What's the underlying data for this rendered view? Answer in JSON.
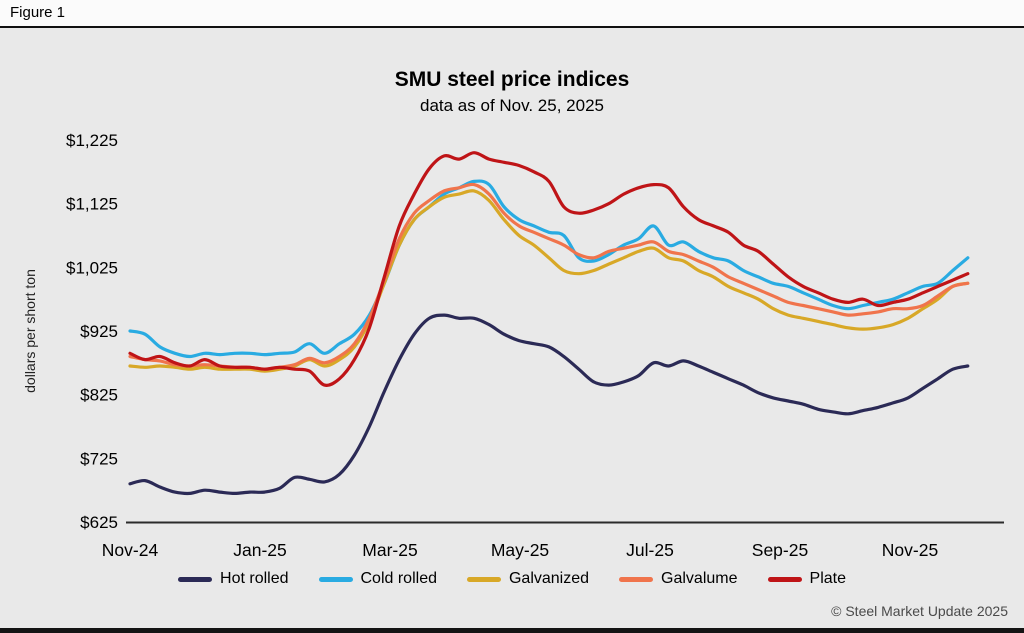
{
  "figure_label": "Figure 1",
  "footer": "© Steel Market Update 2025",
  "chart_data": {
    "type": "line",
    "title": "SMU steel price indices",
    "subtitle": "data as of Nov. 25, 2025",
    "ylabel": "dollars per short ton",
    "ylim": [
      625,
      1225
    ],
    "grid": false,
    "legend_position": "bottom",
    "x_unit": "weeks since Nov-24",
    "x_range": [
      0,
      56
    ],
    "yticks": [
      {
        "value": 1225,
        "label": "$1,225"
      },
      {
        "value": 1125,
        "label": "$1,125"
      },
      {
        "value": 1025,
        "label": "$1,025"
      },
      {
        "value": 925,
        "label": "$925"
      },
      {
        "value": 825,
        "label": "$825"
      },
      {
        "value": 725,
        "label": "$725"
      },
      {
        "value": 625,
        "label": "$625"
      }
    ],
    "xticks": [
      {
        "week": 0,
        "label": "Nov-24"
      },
      {
        "week": 8.69,
        "label": "Jan-25"
      },
      {
        "week": 17.38,
        "label": "Mar-25"
      },
      {
        "week": 26.07,
        "label": "May-25"
      },
      {
        "week": 34.76,
        "label": "Jul-25"
      },
      {
        "week": 43.45,
        "label": "Sep-25"
      },
      {
        "week": 52.14,
        "label": "Nov-25"
      }
    ],
    "series": [
      {
        "name": "Hot rolled",
        "color": "#2b2a56",
        "values": [
          685,
          690,
          680,
          672,
          670,
          675,
          672,
          670,
          672,
          672,
          678,
          695,
          692,
          688,
          700,
          730,
          775,
          830,
          880,
          920,
          945,
          950,
          945,
          945,
          935,
          920,
          910,
          905,
          900,
          885,
          865,
          845,
          840,
          845,
          855,
          875,
          870,
          878,
          870,
          860,
          850,
          840,
          828,
          820,
          815,
          810,
          802,
          798,
          795,
          800,
          805,
          812,
          820,
          835,
          850,
          865,
          870
        ]
      },
      {
        "name": "Cold rolled",
        "color": "#29abe2",
        "values": [
          925,
          920,
          900,
          890,
          885,
          890,
          888,
          890,
          890,
          888,
          890,
          892,
          905,
          890,
          905,
          920,
          950,
          1000,
          1060,
          1100,
          1120,
          1140,
          1150,
          1160,
          1155,
          1120,
          1100,
          1090,
          1080,
          1075,
          1040,
          1035,
          1045,
          1060,
          1070,
          1090,
          1060,
          1065,
          1050,
          1040,
          1035,
          1020,
          1010,
          1000,
          995,
          985,
          975,
          965,
          960,
          965,
          970,
          975,
          985,
          995,
          1000,
          1020,
          1040
        ]
      },
      {
        "name": "Galvanized",
        "color": "#d8a827",
        "values": [
          870,
          868,
          870,
          868,
          865,
          868,
          865,
          865,
          865,
          862,
          865,
          870,
          880,
          870,
          880,
          900,
          940,
          1000,
          1060,
          1100,
          1120,
          1135,
          1140,
          1145,
          1130,
          1100,
          1075,
          1060,
          1040,
          1020,
          1015,
          1020,
          1030,
          1040,
          1050,
          1055,
          1040,
          1035,
          1020,
          1010,
          995,
          985,
          975,
          960,
          950,
          945,
          940,
          935,
          930,
          928,
          930,
          935,
          945,
          960,
          975,
          995,
          1000
        ]
      },
      {
        "name": "Galvalume",
        "color": "#f0744c",
        "values": [
          885,
          880,
          878,
          872,
          870,
          872,
          870,
          868,
          868,
          865,
          868,
          872,
          882,
          875,
          885,
          905,
          945,
          1005,
          1070,
          1110,
          1130,
          1145,
          1150,
          1155,
          1140,
          1110,
          1090,
          1080,
          1070,
          1060,
          1045,
          1040,
          1050,
          1055,
          1060,
          1065,
          1050,
          1045,
          1035,
          1025,
          1010,
          1000,
          990,
          980,
          970,
          965,
          960,
          955,
          950,
          952,
          955,
          960,
          960,
          965,
          980,
          995,
          1000
        ]
      },
      {
        "name": "Plate",
        "color": "#bf1417",
        "values": [
          890,
          880,
          885,
          875,
          870,
          880,
          870,
          868,
          868,
          865,
          868,
          865,
          862,
          840,
          850,
          880,
          930,
          1010,
          1090,
          1140,
          1180,
          1200,
          1195,
          1205,
          1195,
          1190,
          1185,
          1175,
          1160,
          1120,
          1110,
          1115,
          1125,
          1140,
          1150,
          1155,
          1150,
          1120,
          1100,
          1090,
          1080,
          1060,
          1050,
          1030,
          1010,
          995,
          985,
          975,
          970,
          975,
          965,
          970,
          975,
          985,
          995,
          1005,
          1015
        ]
      }
    ]
  }
}
